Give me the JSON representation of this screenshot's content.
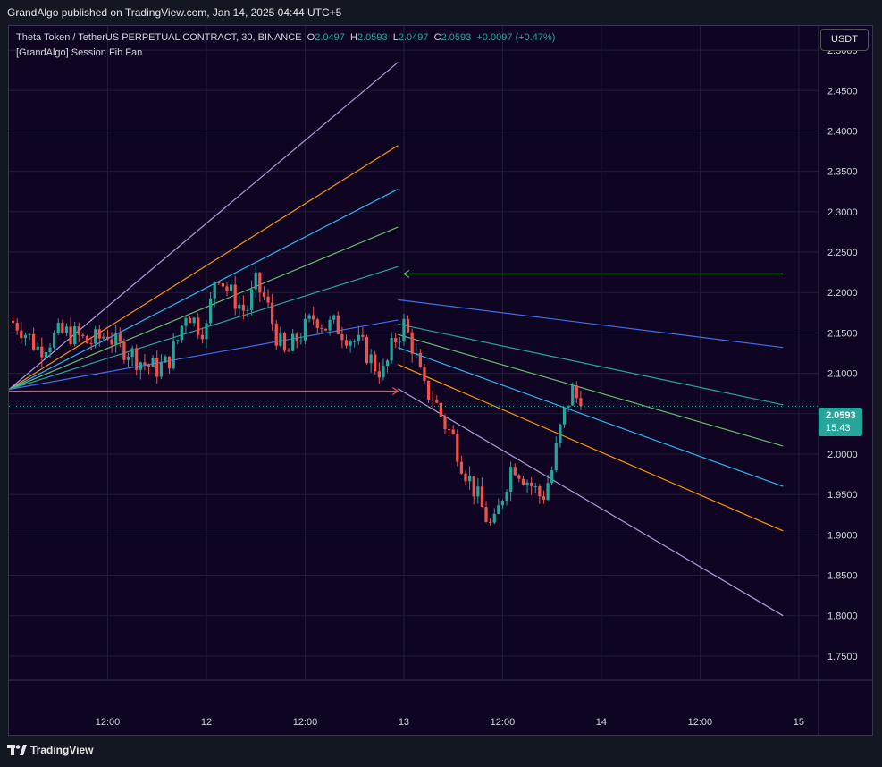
{
  "header": {
    "published": "GrandAlgo published on TradingView.com, Jan 14, 2025 04:44 UTC+5"
  },
  "legend": {
    "symbol": "Theta Token / TetherUS PERPETUAL CONTRACT, 30, BINANCE",
    "o_label": "O",
    "o_value": "2.0497",
    "h_label": "H",
    "h_value": "2.0593",
    "l_label": "L",
    "l_value": "2.0497",
    "c_label": "C",
    "c_value": "2.0593",
    "change": "+0.0097 (+0.47%)",
    "indicator": "[GrandAlgo] Session Fib Fan"
  },
  "currency_button": "USDT",
  "last_price": {
    "price": "2.0593",
    "countdown": "15:43"
  },
  "footer": {
    "brand": "TradingView"
  },
  "colors": {
    "background": "#0f0422",
    "up": "#26a69a",
    "down": "#ef5350",
    "grid": "#241d3a",
    "fan_purple": "#b39ddb",
    "fan_orange": "#ff9800",
    "fan_cyan": "#29b6f6",
    "fan_green": "#66bb6a",
    "fan_teal": "#26a69a",
    "fan_blue": "#3f6ff0"
  },
  "chart_data": {
    "type": "candlestick",
    "title": "Theta Token / TetherUS PERPETUAL CONTRACT, 30, BINANCE",
    "y_ticks": [
      "2.5000",
      "2.4500",
      "2.4000",
      "2.3500",
      "2.3000",
      "2.2500",
      "2.2000",
      "2.1500",
      "2.1000",
      "2.0500",
      "2.0000",
      "1.9500",
      "1.9000",
      "1.8500",
      "1.8000",
      "1.7500"
    ],
    "ylim": [
      1.72,
      2.53
    ],
    "x_ticks": [
      "12:00",
      "12",
      "12:00",
      "13",
      "12:00",
      "14",
      "12:00",
      "15"
    ],
    "x_tick_values": [
      0.5,
      1.0,
      1.5,
      2.0,
      2.5,
      3.0,
      3.5,
      4.0
    ],
    "xlim": [
      0.0,
      4.1
    ],
    "grid": true,
    "fan_sessions": [
      {
        "origin": [
          0.0,
          2.08
        ],
        "rays": [
          {
            "color": "fan_purple",
            "end": [
              1.97,
              2.485
            ]
          },
          {
            "color": "fan_orange",
            "end": [
              1.97,
              2.382
            ]
          },
          {
            "color": "fan_cyan",
            "end": [
              1.97,
              2.328
            ]
          },
          {
            "color": "fan_green",
            "end": [
              1.97,
              2.281
            ]
          },
          {
            "color": "fan_teal",
            "end": [
              1.97,
              2.232
            ]
          },
          {
            "color": "fan_blue",
            "end": [
              1.97,
              2.166
            ]
          }
        ]
      },
      {
        "origin": [
          1.97,
          2.232
        ],
        "rays": [
          {
            "color": "fan_blue",
            "start": [
              1.97,
              2.191
            ],
            "end": [
              3.92,
              2.132
            ]
          },
          {
            "color": "fan_teal",
            "start": [
              1.97,
              2.161
            ],
            "end": [
              3.92,
              2.061
            ]
          },
          {
            "color": "fan_green",
            "start": [
              1.97,
              2.148
            ],
            "end": [
              3.92,
              2.01
            ]
          },
          {
            "color": "fan_cyan",
            "start": [
              1.97,
              2.132
            ],
            "end": [
              3.92,
              1.96
            ]
          },
          {
            "color": "fan_orange",
            "start": [
              1.97,
              2.111
            ],
            "end": [
              3.92,
              1.905
            ]
          },
          {
            "color": "fan_purple",
            "start": [
              1.97,
              2.081
            ],
            "end": [
              3.92,
              1.8
            ]
          }
        ]
      }
    ],
    "level_lines": [
      {
        "color": "down",
        "y": 2.078,
        "x_start": 0.0,
        "x_end": 1.97,
        "arrow": "right"
      },
      {
        "color": "fan_green",
        "y": 2.223,
        "x_start": 2.0,
        "x_end": 3.92,
        "arrow": "left"
      }
    ],
    "candles_anchor_series": [
      [
        0.0,
        2.165
      ],
      [
        0.05,
        2.16
      ],
      [
        0.1,
        2.145
      ],
      [
        0.15,
        2.13
      ],
      [
        0.2,
        2.14
      ],
      [
        0.25,
        2.148
      ],
      [
        0.3,
        2.15
      ],
      [
        0.35,
        2.145
      ],
      [
        0.4,
        2.138
      ],
      [
        0.45,
        2.142
      ],
      [
        0.5,
        2.15
      ],
      [
        0.55,
        2.132
      ],
      [
        0.6,
        2.13
      ],
      [
        0.65,
        2.118
      ],
      [
        0.7,
        2.11
      ],
      [
        0.75,
        2.106
      ],
      [
        0.8,
        2.112
      ],
      [
        0.85,
        2.138
      ],
      [
        0.9,
        2.18
      ],
      [
        0.95,
        2.16
      ],
      [
        1.0,
        2.155
      ],
      [
        1.05,
        2.23
      ],
      [
        1.1,
        2.205
      ],
      [
        1.15,
        2.19
      ],
      [
        1.2,
        2.175
      ],
      [
        1.25,
        2.21
      ],
      [
        1.3,
        2.19
      ],
      [
        1.35,
        2.15
      ],
      [
        1.4,
        2.12
      ],
      [
        1.45,
        2.14
      ],
      [
        1.5,
        2.155
      ],
      [
        1.55,
        2.172
      ],
      [
        1.6,
        2.158
      ],
      [
        1.65,
        2.16
      ],
      [
        1.7,
        2.15
      ],
      [
        1.75,
        2.14
      ],
      [
        1.8,
        2.13
      ],
      [
        1.85,
        2.11
      ],
      [
        1.9,
        2.1
      ],
      [
        1.95,
        2.14
      ],
      [
        2.0,
        2.16
      ],
      [
        2.05,
        2.13
      ],
      [
        2.1,
        2.08
      ],
      [
        2.15,
        2.07
      ],
      [
        2.2,
        2.04
      ],
      [
        2.25,
        2.02
      ],
      [
        2.3,
        1.985
      ],
      [
        2.35,
        1.96
      ],
      [
        2.4,
        1.93
      ],
      [
        2.45,
        1.905
      ],
      [
        2.5,
        1.95
      ],
      [
        2.55,
        1.99
      ],
      [
        2.6,
        1.975
      ],
      [
        2.65,
        1.96
      ],
      [
        2.7,
        1.945
      ],
      [
        2.75,
        1.98
      ],
      [
        2.8,
        2.04
      ],
      [
        2.85,
        2.08
      ],
      [
        2.9,
        2.059
      ]
    ],
    "last_close": 2.0593
  }
}
